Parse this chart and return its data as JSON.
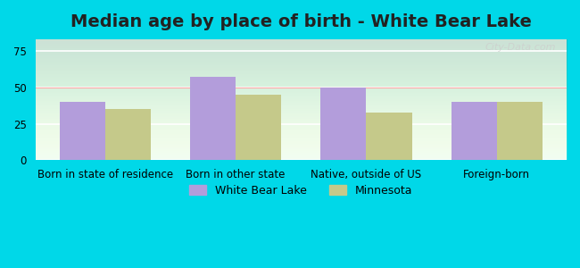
{
  "title": "Median age by place of birth - White Bear Lake",
  "categories": [
    "Born in state of residence",
    "Born in other state",
    "Native, outside of US",
    "Foreign-born"
  ],
  "white_bear_lake": [
    40,
    57,
    50,
    40
  ],
  "minnesota": [
    35,
    45,
    33,
    40
  ],
  "wbl_color": "#b39ddb",
  "mn_color": "#c5c98a",
  "background_outer": "#00d8e8",
  "background_inner": "#f0fdf4",
  "ylim": [
    0,
    83
  ],
  "yticks": [
    0,
    25,
    50,
    75
  ],
  "bar_width": 0.35,
  "legend_wbl": "White Bear Lake",
  "legend_mn": "Minnesota",
  "title_fontsize": 14,
  "tick_fontsize": 8.5,
  "legend_fontsize": 9
}
